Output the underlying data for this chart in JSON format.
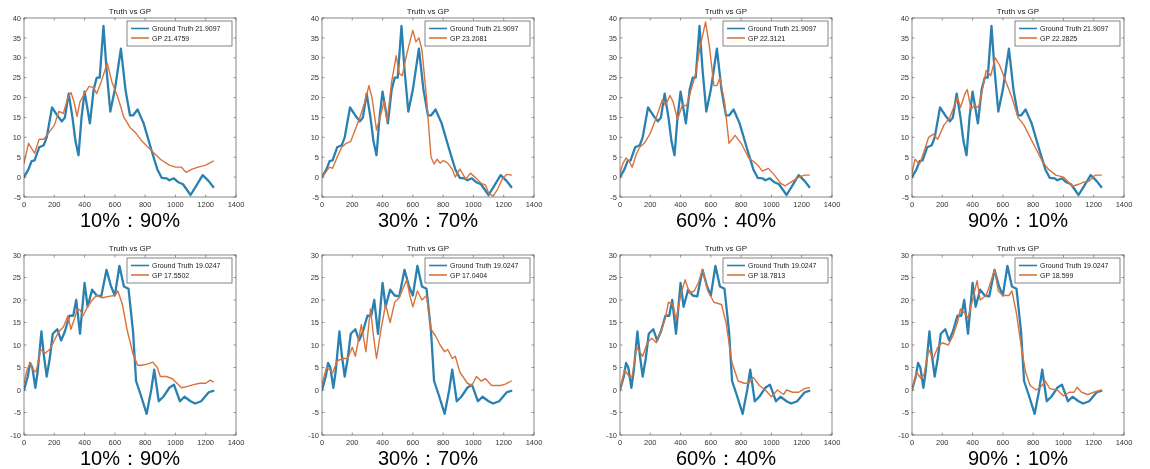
{
  "chart_data": [
    {
      "type": "line",
      "title": "Truth vs GP",
      "xlabel": "10%：90%",
      "xlim": [
        0,
        1400
      ],
      "xticks": [
        0,
        200,
        400,
        600,
        800,
        1000,
        1200,
        1400
      ],
      "ylim": [
        -5,
        40
      ],
      "yticks": [
        -5,
        0,
        5,
        10,
        15,
        20,
        25,
        30,
        35,
        40
      ],
      "legend": "top right",
      "grid": false,
      "line_style": "solid",
      "series": [
        {
          "name": "Ground Truth 21.9097",
          "color": "#2a80b0",
          "x": [
            0,
            30,
            50,
            70,
            100,
            130,
            150,
            185,
            220,
            250,
            270,
            295,
            320,
            340,
            360,
            380,
            400,
            420,
            435,
            460,
            480,
            500,
            525,
            545,
            570,
            600,
            640,
            670,
            700,
            720,
            750,
            790,
            840,
            880,
            910,
            940,
            960,
            990,
            1020,
            1050,
            1100,
            1140,
            1180,
            1220,
            1250
          ],
          "values": [
            0,
            2,
            4,
            4.2,
            7.5,
            8,
            10,
            17.5,
            15.5,
            14,
            15,
            21,
            15,
            9,
            5.5,
            15,
            21.5,
            17,
            13.5,
            22,
            25,
            25,
            38,
            27,
            16.5,
            22,
            32.3,
            22,
            15.5,
            15.5,
            17,
            13.5,
            7,
            2,
            -0.2,
            -0.3,
            -0.8,
            -0.3,
            -1.3,
            -1.8,
            -4.5,
            -2,
            0.5,
            -1,
            -2.5
          ]
        },
        {
          "name": "GP 21.4759",
          "color": "#d9733b",
          "x": [
            0,
            30,
            70,
            100,
            130,
            160,
            200,
            230,
            260,
            290,
            310,
            330,
            350,
            370,
            400,
            430,
            460,
            480,
            510,
            550,
            580,
            620,
            660,
            700,
            740,
            780,
            820,
            860,
            900,
            960,
            1000,
            1040,
            1070,
            1110,
            1150,
            1200,
            1250
          ],
          "values": [
            3.5,
            8.5,
            6,
            9.5,
            9.5,
            11,
            13,
            16.5,
            16,
            20,
            21.3,
            19,
            15.3,
            19,
            21,
            22.8,
            22.5,
            21,
            24,
            28.7,
            24,
            20,
            15,
            12.5,
            11,
            9,
            7.5,
            6,
            4.5,
            3,
            2.5,
            2.5,
            1.2,
            2,
            2.5,
            3,
            4
          ]
        }
      ]
    },
    {
      "type": "line",
      "title": "Truth vs GP",
      "xlabel": "30%：70%",
      "xlim": [
        0,
        1400
      ],
      "xticks": [
        0,
        200,
        400,
        600,
        800,
        1000,
        1200,
        1400
      ],
      "ylim": [
        -5,
        40
      ],
      "yticks": [
        -5,
        0,
        5,
        10,
        15,
        20,
        25,
        30,
        35,
        40
      ],
      "legend": "top right",
      "grid": false,
      "line_style": "solid",
      "series": [
        {
          "name": "Ground Truth 21.9097",
          "color": "#2a80b0",
          "x": [
            0,
            30,
            50,
            70,
            100,
            130,
            150,
            185,
            220,
            250,
            270,
            295,
            320,
            340,
            360,
            380,
            400,
            420,
            435,
            460,
            480,
            500,
            525,
            545,
            570,
            600,
            640,
            670,
            700,
            720,
            750,
            790,
            840,
            880,
            910,
            940,
            960,
            990,
            1020,
            1050,
            1100,
            1140,
            1180,
            1220,
            1250
          ],
          "values": [
            0,
            2,
            4,
            4.2,
            7.5,
            8,
            10,
            17.5,
            15.5,
            14,
            15,
            21,
            15,
            9,
            5.5,
            15,
            21.5,
            17,
            13.5,
            22,
            25,
            25,
            38,
            27,
            16.5,
            22,
            32.3,
            22,
            15.5,
            15.5,
            17,
            13.5,
            7,
            2,
            -0.2,
            -0.3,
            -0.8,
            -0.3,
            -1.3,
            -1.8,
            -4.5,
            -2,
            0.5,
            -1,
            -2.5
          ]
        },
        {
          "name": "GP 23.2081",
          "color": "#d9733b",
          "x": [
            0,
            30,
            50,
            70,
            100,
            130,
            160,
            190,
            220,
            250,
            280,
            310,
            330,
            360,
            390,
            410,
            430,
            460,
            490,
            510,
            530,
            560,
            580,
            600,
            620,
            640,
            660,
            690,
            720,
            740,
            760,
            780,
            800,
            830,
            860,
            880,
            910,
            950,
            980,
            1010,
            1050,
            1080,
            1100,
            1130,
            1160,
            1190,
            1220,
            1250
          ],
          "values": [
            0,
            1.5,
            2.5,
            2.2,
            5,
            7.5,
            8.5,
            9,
            12,
            15,
            18.5,
            23,
            20,
            11.8,
            16,
            19,
            14,
            24,
            30.5,
            26,
            25.5,
            31,
            34,
            36.9,
            34,
            35,
            32,
            20,
            5,
            3.3,
            4.5,
            3.5,
            4.2,
            3.5,
            2,
            0,
            2,
            -0.5,
            1,
            0,
            -1.5,
            -2,
            -4,
            -4.8,
            -3,
            -0.5,
            0.7,
            0.5
          ]
        }
      ]
    },
    {
      "type": "line",
      "title": "Truth vs GP",
      "xlabel": "60%：40%",
      "xlim": [
        0,
        1400
      ],
      "xticks": [
        0,
        200,
        400,
        600,
        800,
        1000,
        1200,
        1400
      ],
      "ylim": [
        -5,
        40
      ],
      "yticks": [
        -5,
        0,
        5,
        10,
        15,
        20,
        25,
        30,
        35,
        40
      ],
      "legend": "top right",
      "grid": false,
      "line_style": "solid",
      "series": [
        {
          "name": "Ground Truth 21.9097",
          "color": "#2a80b0",
          "x": [
            0,
            30,
            50,
            70,
            100,
            130,
            150,
            185,
            220,
            250,
            270,
            295,
            320,
            340,
            360,
            380,
            400,
            420,
            435,
            460,
            480,
            500,
            525,
            545,
            570,
            600,
            640,
            670,
            700,
            720,
            750,
            790,
            840,
            880,
            910,
            940,
            960,
            990,
            1020,
            1050,
            1100,
            1140,
            1180,
            1220,
            1250
          ],
          "values": [
            0,
            2,
            4,
            4.2,
            7.5,
            8,
            10,
            17.5,
            15.5,
            14,
            15,
            21,
            15,
            9,
            5.5,
            15,
            21.5,
            17,
            13.5,
            22,
            25,
            25,
            38,
            27,
            16.5,
            22,
            32.3,
            22,
            15.5,
            15.5,
            17,
            13.5,
            7,
            2,
            -0.2,
            -0.3,
            -0.8,
            -0.3,
            -1.3,
            -1.8,
            -4.5,
            -2,
            0.5,
            -1,
            -2.5
          ]
        },
        {
          "name": "GP 22.3121",
          "color": "#d9733b",
          "x": [
            0,
            20,
            40,
            60,
            80,
            110,
            130,
            160,
            200,
            240,
            280,
            300,
            330,
            350,
            380,
            410,
            440,
            470,
            500,
            530,
            565,
            590,
            620,
            640,
            660,
            690,
            720,
            760,
            800,
            850,
            880,
            910,
            940,
            980,
            1020,
            1060,
            1090,
            1140,
            1180,
            1220,
            1250
          ],
          "values": [
            1,
            3.5,
            4.8,
            4,
            2.5,
            6,
            7.5,
            8.5,
            11,
            15,
            19.5,
            18,
            20.5,
            19,
            14.5,
            18,
            18,
            22,
            26,
            33,
            39,
            33,
            23,
            23,
            25,
            19,
            8.5,
            10.5,
            8.5,
            4.8,
            4,
            3,
            1.5,
            2.2,
            0.5,
            -1.5,
            -2.2,
            -1,
            0,
            0.5,
            0.5
          ]
        }
      ]
    },
    {
      "type": "line",
      "title": "Truth vs GP",
      "xlabel": "90%：10%",
      "xlim": [
        0,
        1400
      ],
      "xticks": [
        0,
        200,
        400,
        600,
        800,
        1000,
        1200,
        1400
      ],
      "ylim": [
        -5,
        40
      ],
      "yticks": [
        -5,
        0,
        5,
        10,
        15,
        20,
        25,
        30,
        35,
        40
      ],
      "legend": "top right",
      "grid": false,
      "line_style": "solid",
      "series": [
        {
          "name": "Ground Truth 21.9097",
          "color": "#2a80b0",
          "x": [
            0,
            30,
            50,
            70,
            100,
            130,
            150,
            185,
            220,
            250,
            270,
            295,
            320,
            340,
            360,
            380,
            400,
            420,
            435,
            460,
            480,
            500,
            525,
            545,
            570,
            600,
            640,
            670,
            700,
            720,
            750,
            790,
            840,
            880,
            910,
            940,
            960,
            990,
            1020,
            1050,
            1100,
            1140,
            1180,
            1220,
            1250
          ],
          "values": [
            0,
            2,
            4,
            4.2,
            7.5,
            8,
            10,
            17.5,
            15.5,
            14,
            15,
            21,
            15,
            9,
            5.5,
            15,
            21.5,
            17,
            13.5,
            22,
            25,
            25,
            38,
            27,
            16.5,
            22,
            32.3,
            22,
            15.5,
            15.5,
            17,
            13.5,
            7,
            2,
            -0.2,
            -0.3,
            -0.8,
            -0.3,
            -1.3,
            -1.8,
            -4.5,
            -2,
            0.5,
            -1,
            -2.5
          ]
        },
        {
          "name": "GP 22.2825",
          "color": "#d9733b",
          "x": [
            0,
            20,
            50,
            80,
            110,
            140,
            170,
            210,
            250,
            280,
            300,
            320,
            350,
            365,
            390,
            410,
            440,
            470,
            490,
            520,
            550,
            580,
            620,
            660,
            700,
            740,
            780,
            820,
            860,
            900,
            950,
            1000,
            1040,
            1060,
            1100,
            1130,
            1170,
            1210,
            1250
          ],
          "values": [
            1,
            4.5,
            3.2,
            6.5,
            10,
            10.8,
            9.5,
            13,
            15,
            18,
            20,
            17.5,
            21,
            22,
            17,
            18,
            17.5,
            23,
            26.8,
            25.5,
            30,
            28,
            24,
            20,
            15,
            13,
            10,
            7,
            4,
            2,
            0.5,
            0,
            -1.5,
            -2.3,
            -1.8,
            -1.3,
            -1,
            0.5,
            0.5
          ]
        }
      ]
    },
    {
      "type": "line",
      "title": "Truth vs GP",
      "xlabel": "10%：90%",
      "xlim": [
        0,
        1400
      ],
      "xticks": [
        0,
        200,
        400,
        600,
        800,
        1000,
        1200,
        1400
      ],
      "ylim": [
        -10,
        30
      ],
      "yticks": [
        -10,
        -5,
        0,
        5,
        10,
        15,
        20,
        25,
        30
      ],
      "legend": "top right",
      "grid": false,
      "line_style": "solid",
      "series": [
        {
          "name": "Ground Truth 19.0247",
          "color": "#2a80b0",
          "x": [
            0,
            25,
            40,
            55,
            75,
            90,
            115,
            130,
            150,
            170,
            190,
            220,
            245,
            270,
            300,
            325,
            345,
            370,
            400,
            420,
            450,
            480,
            510,
            545,
            575,
            600,
            630,
            660,
            690,
            720,
            740,
            770,
            810,
            840,
            860,
            890,
            920,
            960,
            990,
            1030,
            1060,
            1100,
            1130,
            1170,
            1220,
            1250
          ],
          "values": [
            0,
            3,
            6,
            5,
            0.5,
            4,
            13,
            8,
            3,
            7,
            12.5,
            13.5,
            11,
            13,
            16.5,
            16.5,
            20,
            12.5,
            23.8,
            18.5,
            22.3,
            21,
            20.8,
            26.7,
            23,
            21,
            27.6,
            23,
            22.5,
            13,
            2,
            -1,
            -5.3,
            0,
            4.5,
            -2.5,
            -1.5,
            0.5,
            1.2,
            -2.5,
            -1.5,
            -2.5,
            -3,
            -2.5,
            -0.5,
            -0.2
          ]
        },
        {
          "name": "GP 17.5502",
          "color": "#d9733b",
          "x": [
            0,
            20,
            40,
            60,
            80,
            110,
            140,
            170,
            200,
            230,
            260,
            290,
            310,
            340,
            350,
            370,
            390,
            420,
            450,
            480,
            520,
            560,
            600,
            620,
            650,
            680,
            720,
            750,
            780,
            820,
            850,
            880,
            900,
            940,
            980,
            1010,
            1040,
            1080,
            1120,
            1160,
            1200,
            1230,
            1250
          ],
          "values": [
            1.5,
            4.5,
            6,
            4.5,
            4,
            9,
            8.2,
            9,
            11,
            13,
            14,
            16.5,
            13.5,
            16.5,
            18,
            17.8,
            16.5,
            18.5,
            20,
            21,
            20.5,
            20.8,
            21,
            22,
            19,
            13.5,
            8,
            5.5,
            5.5,
            5.8,
            6.2,
            5,
            3,
            3,
            2.5,
            1.5,
            0.5,
            0.8,
            1.2,
            1.5,
            1.5,
            2.2,
            1.8
          ]
        }
      ]
    },
    {
      "type": "line",
      "title": "Truth vs GP",
      "xlabel": "30%：70%",
      "xlim": [
        0,
        1400
      ],
      "xticks": [
        0,
        200,
        400,
        600,
        800,
        1000,
        1200,
        1400
      ],
      "ylim": [
        -10,
        30
      ],
      "yticks": [
        -10,
        -5,
        0,
        5,
        10,
        15,
        20,
        25,
        30
      ],
      "legend": "top right",
      "grid": false,
      "line_style": "solid",
      "series": [
        {
          "name": "Ground Truth 19.0247",
          "color": "#2a80b0",
          "x": [
            0,
            25,
            40,
            55,
            75,
            90,
            115,
            130,
            150,
            170,
            190,
            220,
            245,
            270,
            300,
            325,
            345,
            370,
            400,
            420,
            450,
            480,
            510,
            545,
            575,
            600,
            630,
            660,
            690,
            720,
            740,
            770,
            810,
            840,
            860,
            890,
            920,
            960,
            990,
            1030,
            1060,
            1100,
            1130,
            1170,
            1220,
            1250
          ],
          "values": [
            0,
            3,
            6,
            5,
            0.5,
            4,
            13,
            8,
            3,
            7,
            12.5,
            13.5,
            11,
            13,
            16.5,
            16.5,
            20,
            12.5,
            23.8,
            18.5,
            22.3,
            21,
            20.8,
            26.7,
            23,
            21,
            27.6,
            23,
            22.5,
            13,
            2,
            -1,
            -5.3,
            0,
            4.5,
            -2.5,
            -1.5,
            0.5,
            1.2,
            -2.5,
            -1.5,
            -2.5,
            -3,
            -2.5,
            -0.5,
            -0.2
          ]
        },
        {
          "name": "GP 17.0404",
          "color": "#d9733b",
          "x": [
            0,
            30,
            50,
            70,
            100,
            140,
            170,
            200,
            220,
            260,
            290,
            320,
            340,
            360,
            390,
            420,
            450,
            480,
            510,
            540,
            560,
            580,
            600,
            630,
            660,
            690,
            720,
            750,
            780,
            810,
            830,
            860,
            880,
            910,
            960,
            990,
            1020,
            1050,
            1080,
            1120,
            1150,
            1180,
            1210,
            1250
          ],
          "values": [
            1.3,
            5,
            4.5,
            3.8,
            6.5,
            7,
            7,
            9.5,
            7.5,
            14.5,
            8.5,
            18,
            12,
            7,
            13.5,
            19,
            15,
            19.5,
            20.5,
            23,
            24.5,
            21,
            18.5,
            22,
            20,
            21,
            13.5,
            12,
            10,
            8.5,
            9,
            7,
            7.5,
            4,
            1.5,
            1,
            3,
            2,
            2.5,
            1,
            1,
            1,
            1.3,
            2
          ]
        }
      ]
    },
    {
      "type": "line",
      "title": "Truth vs GP",
      "xlabel": "60%：40%",
      "xlim": [
        0,
        1400
      ],
      "xticks": [
        0,
        200,
        400,
        600,
        800,
        1000,
        1200,
        1400
      ],
      "ylim": [
        -10,
        30
      ],
      "yticks": [
        -10,
        -5,
        0,
        5,
        10,
        15,
        20,
        25,
        30
      ],
      "legend": "top right",
      "grid": false,
      "line_style": "solid",
      "series": [
        {
          "name": "Ground Truth 19.0247",
          "color": "#2a80b0",
          "x": [
            0,
            25,
            40,
            55,
            75,
            90,
            115,
            130,
            150,
            170,
            190,
            220,
            245,
            270,
            300,
            325,
            345,
            370,
            400,
            420,
            450,
            480,
            510,
            545,
            575,
            600,
            630,
            660,
            690,
            720,
            740,
            770,
            810,
            840,
            860,
            890,
            920,
            960,
            990,
            1030,
            1060,
            1100,
            1130,
            1170,
            1220,
            1250
          ],
          "values": [
            0,
            3,
            6,
            5,
            0.5,
            4,
            13,
            8,
            3,
            7,
            12.5,
            13.5,
            11,
            13,
            16.5,
            16.5,
            20,
            12.5,
            23.8,
            18.5,
            22.3,
            21,
            20.8,
            26.7,
            23,
            21,
            27.6,
            23,
            22.5,
            13,
            2,
            -1,
            -5.3,
            0,
            4.5,
            -2.5,
            -1.5,
            0.5,
            1.2,
            -2.5,
            -1.5,
            -2.5,
            -3,
            -2.5,
            -0.5,
            -0.2
          ]
        },
        {
          "name": "GP 18.7813",
          "color": "#d9733b",
          "x": [
            0,
            30,
            60,
            80,
            110,
            150,
            180,
            210,
            240,
            270,
            300,
            320,
            350,
            370,
            400,
            430,
            460,
            490,
            520,
            545,
            580,
            620,
            670,
            700,
            740,
            780,
            820,
            850,
            880,
            920,
            960,
            1000,
            1040,
            1080,
            1100,
            1140,
            1180,
            1220,
            1250
          ],
          "values": [
            0,
            4.5,
            3,
            3,
            9.5,
            7.5,
            10.5,
            11.5,
            10.5,
            13,
            16,
            19.5,
            19,
            15.5,
            21,
            24.5,
            21.5,
            22,
            24,
            26.8,
            22,
            19.5,
            19,
            15,
            6,
            2,
            1.5,
            1.5,
            2.8,
            1,
            0,
            -1.5,
            0,
            -1,
            0,
            -0.5,
            -0.5,
            0.3,
            0.5
          ]
        }
      ]
    },
    {
      "type": "line",
      "title": "Truth vs GP",
      "xlabel": "90%：10%",
      "xlim": [
        0,
        1400
      ],
      "xticks": [
        0,
        200,
        400,
        600,
        800,
        1000,
        1200,
        1400
      ],
      "ylim": [
        -10,
        30
      ],
      "yticks": [
        -10,
        -5,
        0,
        5,
        10,
        15,
        20,
        25,
        30
      ],
      "legend": "top right",
      "grid": false,
      "line_style": "solid",
      "series": [
        {
          "name": "Ground Truth 19.0247",
          "color": "#2a80b0",
          "x": [
            0,
            25,
            40,
            55,
            75,
            90,
            115,
            130,
            150,
            170,
            190,
            220,
            245,
            270,
            300,
            325,
            345,
            370,
            400,
            420,
            450,
            480,
            510,
            545,
            575,
            600,
            630,
            660,
            690,
            720,
            740,
            770,
            810,
            840,
            860,
            890,
            920,
            960,
            990,
            1030,
            1060,
            1100,
            1130,
            1170,
            1220,
            1250
          ],
          "values": [
            0,
            3,
            6,
            5,
            0.5,
            4,
            13,
            8,
            3,
            7,
            12.5,
            13.5,
            11,
            13,
            16.5,
            16.5,
            20,
            12.5,
            23.8,
            18.5,
            22.3,
            21,
            20.8,
            26.7,
            23,
            21,
            27.6,
            23,
            22.5,
            13,
            2,
            -1,
            -5.3,
            0,
            4.5,
            -2.5,
            -1.5,
            0.5,
            1.2,
            -2.5,
            -1.5,
            -2.5,
            -3,
            -2.5,
            -0.5,
            -0.2
          ]
        },
        {
          "name": "GP 18.599",
          "color": "#d9733b",
          "x": [
            0,
            30,
            60,
            80,
            110,
            140,
            170,
            200,
            240,
            270,
            300,
            320,
            350,
            370,
            400,
            430,
            450,
            490,
            520,
            545,
            570,
            600,
            640,
            660,
            690,
            720,
            750,
            780,
            820,
            860,
            880,
            910,
            960,
            1000,
            1040,
            1070,
            1090,
            1120,
            1160,
            1200,
            1250
          ],
          "values": [
            0,
            4,
            2.5,
            3.5,
            9,
            7,
            9.5,
            10.5,
            10,
            12,
            15,
            18,
            17,
            16,
            20,
            24.3,
            20,
            21,
            24,
            26.8,
            22,
            21,
            21,
            22,
            17,
            10,
            4,
            1,
            0,
            1,
            2,
            0.3,
            0,
            -1.3,
            -0.5,
            -0.5,
            0.6,
            -0.5,
            -1,
            -0.5,
            0
          ]
        }
      ]
    }
  ]
}
